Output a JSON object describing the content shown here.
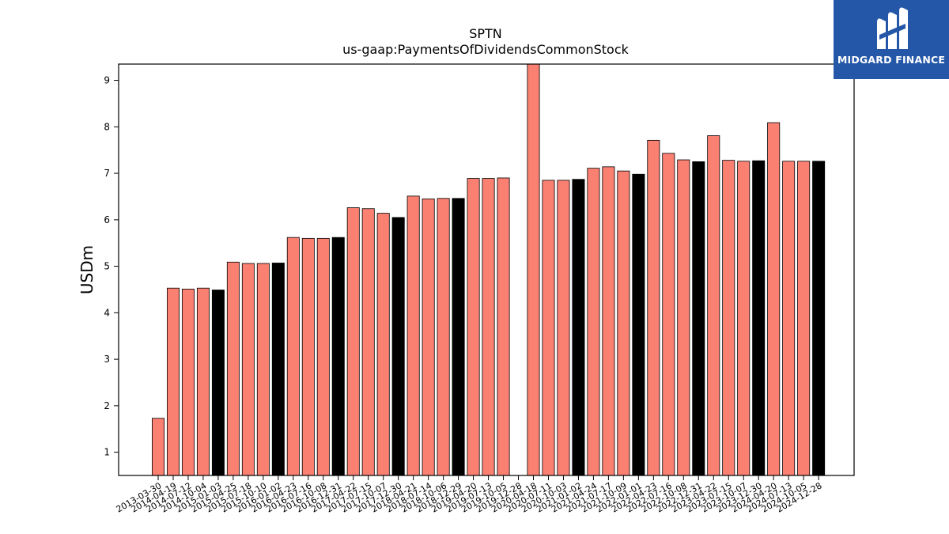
{
  "brand": {
    "name": "MIDGARD FINANCE",
    "color": "#2457a8",
    "icon": "midgard-mf-logo-icon"
  },
  "chart_data": {
    "type": "bar",
    "title": "SPTN",
    "subtitle": "us-gaap:PaymentsOfDividendsCommonStock",
    "xlabel": "",
    "ylabel": "USDm",
    "ylim": [
      0.5,
      9.35
    ],
    "yticks": [
      1,
      2,
      3,
      4,
      5,
      6,
      7,
      8,
      9
    ],
    "grid": false,
    "colors": {
      "quarter": "#fa8072",
      "annual": "#000000"
    },
    "categories": [
      "2013-03-30",
      "2014-04-19",
      "2014-07-12",
      "2014-10-04",
      "2015-01-03",
      "2015-04-25",
      "2015-07-18",
      "2015-10-10",
      "2016-01-02",
      "2016-04-23",
      "2016-07-16",
      "2016-10-08",
      "2016-12-31",
      "2017-04-22",
      "2017-07-15",
      "2017-10-07",
      "2017-12-30",
      "2018-04-21",
      "2018-07-14",
      "2018-10-06",
      "2018-12-29",
      "2019-04-20",
      "2019-07-13",
      "2019-10-05",
      "2019-12-28",
      "2020-04-18",
      "2020-07-11",
      "2020-10-03",
      "2021-01-02",
      "2021-04-24",
      "2021-07-17",
      "2021-10-09",
      "2022-01-01",
      "2022-04-23",
      "2022-07-16",
      "2022-10-08",
      "2022-12-31",
      "2023-04-22",
      "2023-07-15",
      "2023-10-07",
      "2023-12-30",
      "2024-04-20",
      "2024-07-13",
      "2024-10-05",
      "2024-12-28"
    ],
    "values": [
      1.73,
      4.53,
      4.51,
      4.53,
      4.49,
      5.09,
      5.06,
      5.06,
      5.07,
      5.62,
      5.6,
      5.6,
      5.62,
      6.26,
      6.24,
      6.14,
      6.05,
      6.51,
      6.45,
      6.46,
      6.46,
      6.89,
      6.89,
      6.9,
      null,
      9.4,
      6.85,
      6.85,
      6.87,
      7.11,
      7.14,
      7.05,
      6.98,
      7.71,
      7.43,
      7.29,
      7.25,
      7.81,
      7.28,
      7.26,
      7.27,
      8.09,
      7.26,
      7.26,
      7.26
    ],
    "kinds": [
      "q",
      "q",
      "q",
      "q",
      "a",
      "q",
      "q",
      "q",
      "a",
      "q",
      "q",
      "q",
      "a",
      "q",
      "q",
      "q",
      "a",
      "q",
      "q",
      "q",
      "a",
      "q",
      "q",
      "q",
      "a",
      "q",
      "q",
      "q",
      "a",
      "q",
      "q",
      "q",
      "a",
      "q",
      "q",
      "q",
      "a",
      "q",
      "q",
      "q",
      "a",
      "q",
      "q",
      "q",
      "a"
    ]
  }
}
